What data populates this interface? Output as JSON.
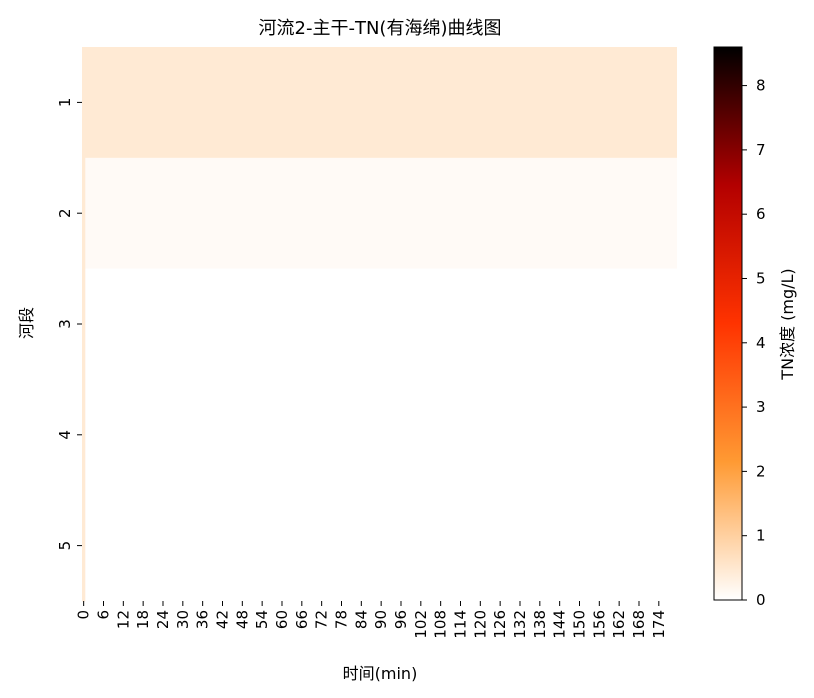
{
  "chart_data": {
    "type": "heatmap",
    "title": "河流2-主干-TN(有海绵)曲线图",
    "xlabel": "时间(min)",
    "ylabel": "河段",
    "x_tick_labels": [
      "0",
      "6",
      "12",
      "18",
      "24",
      "30",
      "36",
      "42",
      "48",
      "54",
      "60",
      "66",
      "72",
      "78",
      "84",
      "90",
      "96",
      "102",
      "108",
      "114",
      "120",
      "126",
      "132",
      "138",
      "144",
      "150",
      "156",
      "162",
      "168",
      "174"
    ],
    "x": {
      "start": 0,
      "step": 1,
      "count": 180,
      "tick_step": 6
    },
    "rows": [
      "1",
      "2",
      "3",
      "4",
      "5"
    ],
    "row_values": [
      {
        "row": "1",
        "first_col": 0.45,
        "rest": 0.45
      },
      {
        "row": "2",
        "first_col": 0.45,
        "rest": 0.1
      },
      {
        "row": "3",
        "first_col": 0.45,
        "rest": 0.0
      },
      {
        "row": "4",
        "first_col": 0.45,
        "rest": 0.0
      },
      {
        "row": "5",
        "first_col": 0.45,
        "rest": 0.0
      }
    ],
    "colorbar": {
      "label": "TN浓度 (mg/L)",
      "vmin": 0,
      "vmax": 8.6,
      "ticks": [
        0,
        1,
        2,
        3,
        4,
        5,
        6,
        7,
        8
      ],
      "colormap": "gist_heat_r",
      "colors": [
        "#ffffff",
        "#ff9a33",
        "#ff3300",
        "#b30000",
        "#000000"
      ]
    },
    "grid": false
  }
}
